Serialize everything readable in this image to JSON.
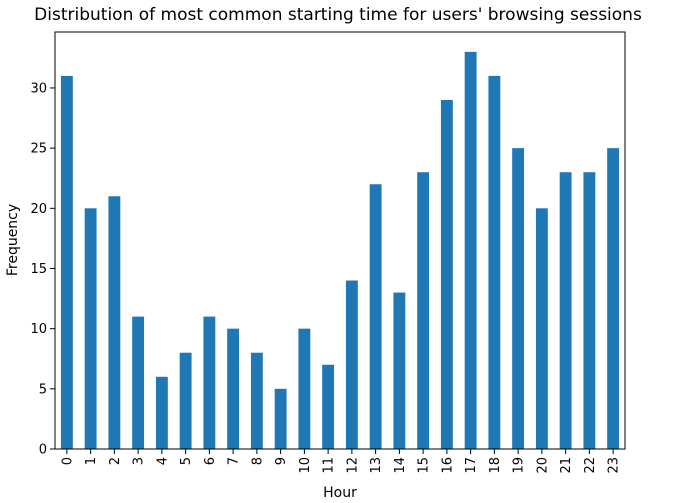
{
  "chart_data": {
    "type": "bar",
    "title": "Distribution of most common starting time for users' browsing sessions",
    "xlabel": "Hour",
    "ylabel": "Frequency",
    "categories": [
      "0",
      "1",
      "2",
      "3",
      "4",
      "5",
      "6",
      "7",
      "8",
      "9",
      "10",
      "11",
      "12",
      "13",
      "14",
      "15",
      "16",
      "17",
      "18",
      "19",
      "20",
      "21",
      "22",
      "23"
    ],
    "values": [
      31,
      20,
      21,
      11,
      6,
      8,
      11,
      10,
      8,
      5,
      10,
      7,
      14,
      22,
      13,
      23,
      29,
      33,
      31,
      25,
      20,
      23,
      23,
      25
    ],
    "yticks": [
      0,
      5,
      10,
      15,
      20,
      25,
      30
    ],
    "ylim": [
      0,
      34.65
    ],
    "grid": false,
    "colors": {
      "bar": "#1f77b4",
      "axis": "#000000"
    }
  }
}
